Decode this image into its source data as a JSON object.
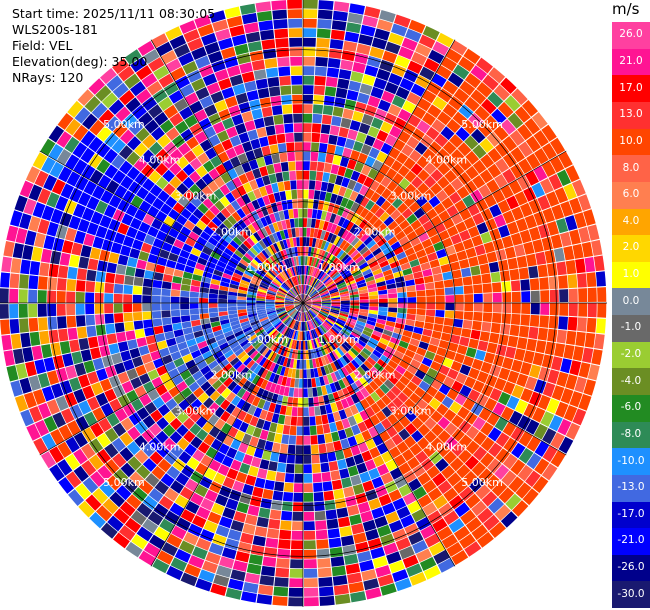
{
  "header": {
    "start_time": "Start time: 2025/11/11 08:30:05",
    "station": "WLS200s-181",
    "field": "Field: VEL",
    "elevation": "Elevation(deg): 35.00",
    "nrays": "NRays: 120"
  },
  "chart_data": {
    "type": "heatmap",
    "projection": "polar-ppi",
    "title": "",
    "field": "VEL",
    "elevation_deg": 35.0,
    "n_rays": 120,
    "n_range_gates": 32,
    "range_rings_km": [
      1.0,
      2.0,
      3.0,
      4.0,
      5.0
    ],
    "ring_label_texts": [
      "1.00km",
      "2.00km",
      "3.00km",
      "4.00km",
      "5.00km"
    ],
    "max_range_km": 6.0,
    "grid": true,
    "colorbar": {
      "unit": "m/s",
      "placement": "right",
      "ticks": [
        "26.0",
        "21.0",
        "17.0",
        "13.0",
        "10.0",
        "8.0",
        "6.0",
        "4.0",
        "2.0",
        "1.0",
        "0.0",
        "-1.0",
        "-2.0",
        "-4.0",
        "-6.0",
        "-8.0",
        "-10.0",
        "-13.0",
        "-17.0",
        "-21.0",
        "-26.0",
        "-30.0"
      ],
      "bins": [
        {
          "min": 26,
          "max": 30,
          "color": "#ff40a0"
        },
        {
          "min": 21,
          "max": 26,
          "color": "#ff1493"
        },
        {
          "min": 17,
          "max": 21,
          "color": "#ff0000"
        },
        {
          "min": 13,
          "max": 17,
          "color": "#ff3030"
        },
        {
          "min": 10,
          "max": 13,
          "color": "#ff4500"
        },
        {
          "min": 8,
          "max": 10,
          "color": "#ff6347"
        },
        {
          "min": 6,
          "max": 8,
          "color": "#ff7f50"
        },
        {
          "min": 4,
          "max": 6,
          "color": "#ffa500"
        },
        {
          "min": 2,
          "max": 4,
          "color": "#ffd700"
        },
        {
          "min": 1,
          "max": 2,
          "color": "#ffff00"
        },
        {
          "min": 0,
          "max": 1,
          "color": "#778899"
        },
        {
          "min": -1,
          "max": 0,
          "color": "#696969"
        },
        {
          "min": -2,
          "max": -1,
          "color": "#9acd32"
        },
        {
          "min": -4,
          "max": -2,
          "color": "#6b8e23"
        },
        {
          "min": -6,
          "max": -4,
          "color": "#228b22"
        },
        {
          "min": -8,
          "max": -6,
          "color": "#2e8b57"
        },
        {
          "min": -10,
          "max": -8,
          "color": "#1e90ff"
        },
        {
          "min": -13,
          "max": -10,
          "color": "#4169e1"
        },
        {
          "min": -17,
          "max": -13,
          "color": "#0000cd"
        },
        {
          "min": -21,
          "max": -17,
          "color": "#0000ff"
        },
        {
          "min": -26,
          "max": -21,
          "color": "#00008b"
        },
        {
          "min": -30,
          "max": -26,
          "color": "#191970"
        }
      ]
    },
    "dominant_regions": [
      {
        "azimuth_from_deg": 30,
        "azimuth_to_deg": 150,
        "range_from_km": 2.0,
        "range_to_km": 6.0,
        "value": 11.5
      },
      {
        "azimuth_from_deg": 285,
        "azimuth_to_deg": 310,
        "range_from_km": 1.5,
        "range_to_km": 5.5,
        "value": -19.0
      },
      {
        "azimuth_from_deg": 230,
        "azimuth_to_deg": 275,
        "range_from_km": 0.5,
        "range_to_km": 3.0,
        "value": -11.5
      }
    ]
  }
}
